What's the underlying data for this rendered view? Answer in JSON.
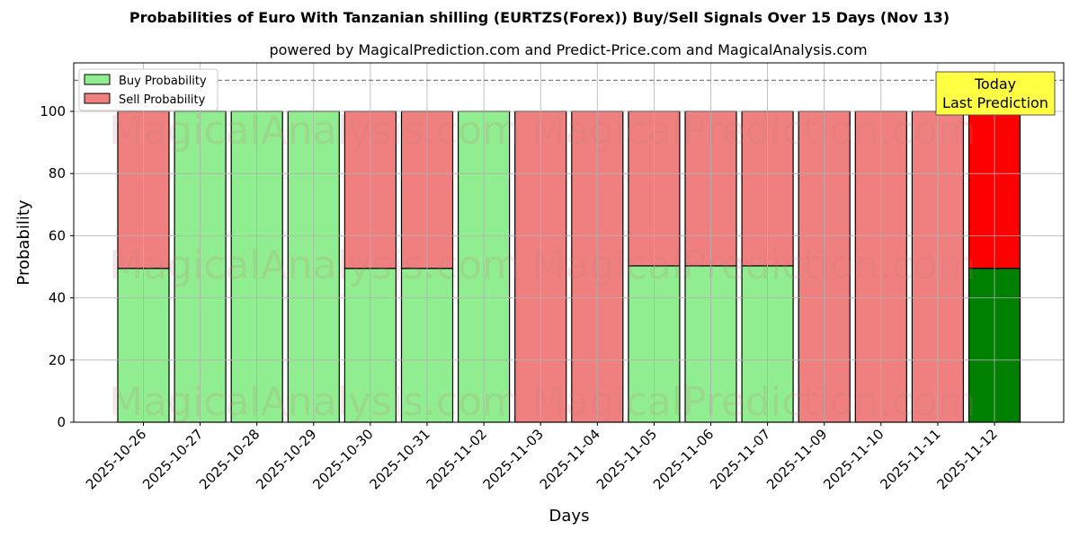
{
  "chart_data": {
    "type": "bar",
    "stacked": true,
    "title": "Probabilities of Euro With Tanzanian shilling (EURTZS(Forex)) Buy/Sell Signals Over 15 Days (Nov 13)",
    "subtitle": "powered by MagicalPrediction.com and Predict-Price.com and MagicalAnalysis.com",
    "xlabel": "Days",
    "ylabel": "Probability",
    "ylim": [
      0,
      115.6
    ],
    "yticks": [
      0,
      20,
      40,
      60,
      80,
      100
    ],
    "reference_line": {
      "y": 110,
      "style": "dashed",
      "color": "#808080"
    },
    "grid": true,
    "legend": {
      "position": "upper left",
      "entries": [
        "Buy Probability",
        "Sell Probability"
      ]
    },
    "categories": [
      "2025-10-26",
      "2025-10-27",
      "2025-10-28",
      "2025-10-29",
      "2025-10-30",
      "2025-10-31",
      "2025-11-02",
      "2025-11-03",
      "2025-11-04",
      "2025-11-05",
      "2025-11-06",
      "2025-11-07",
      "2025-11-09",
      "2025-11-10",
      "2025-11-11",
      "2025-11-12"
    ],
    "series": [
      {
        "name": "Buy Probability",
        "color": "#90ee90",
        "values": [
          49.5,
          100,
          100,
          100,
          49.5,
          49.5,
          100,
          0,
          0,
          50.3,
          50.3,
          50.3,
          0,
          0,
          0,
          49.5
        ]
      },
      {
        "name": "Sell Probability",
        "color": "#f08080",
        "values": [
          50.5,
          0,
          0,
          0,
          50.5,
          50.5,
          0,
          100,
          100,
          49.7,
          49.7,
          49.7,
          100,
          100,
          100,
          50.5
        ]
      }
    ],
    "highlight": {
      "index": 15,
      "buy_color": "#008000",
      "sell_color": "#ff0000"
    },
    "annotation": {
      "text_line1": "Today",
      "text_line2": "Last Prediction",
      "bg": "#ffff44"
    },
    "watermarks": [
      "MagicalAnalysis.com",
      "MagicalPrediction.com"
    ]
  }
}
